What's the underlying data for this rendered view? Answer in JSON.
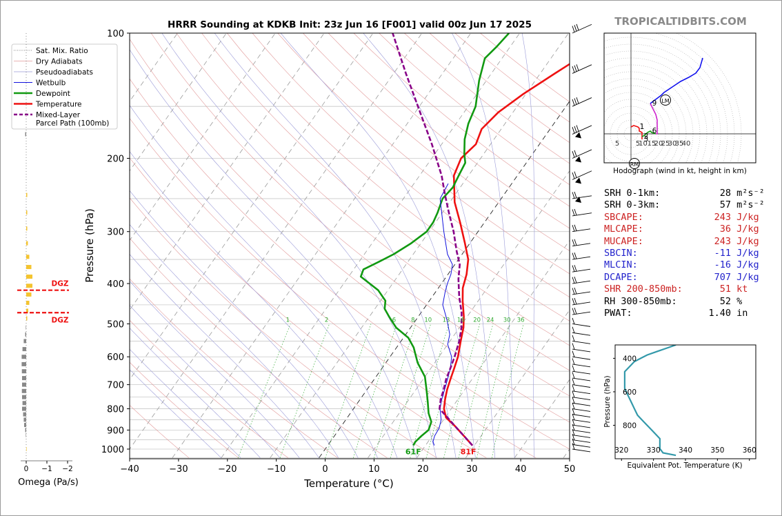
{
  "title": "HRRR Sounding at KDKB Init: 23z Jun 16 [F001] valid 00z Jun 17 2025",
  "watermark": "TROPICALTIDBITS.COM",
  "chart_data": [
    {
      "type": "line",
      "name": "skew-t",
      "xlabel": "Temperature (°C)",
      "ylabel": "Pressure (hPa)",
      "xlim": [
        -40,
        50
      ],
      "ylim": [
        1000,
        100
      ],
      "x_ticks": [
        "−40",
        "−30",
        "−20",
        "−10",
        "0",
        "10",
        "20",
        "30",
        "40",
        "50"
      ],
      "y_ticks": [
        "100",
        "200",
        "300",
        "400",
        "500",
        "600",
        "700",
        "800",
        "900",
        "1000"
      ],
      "legend": [
        "Sat. Mix. Ratio",
        "Dry Adiabats",
        "Pseudoadiabats",
        "Wetbulb",
        "Dewpoint",
        "Temperature",
        "Mixed-Layer\nParcel Path (100mb)"
      ],
      "mixing_ratio_labels": [
        "1",
        "2",
        "6",
        "8",
        "10",
        "13",
        "16",
        "20",
        "24",
        "30",
        "36"
      ],
      "surface_labels": {
        "dewpoint": "61F",
        "temperature": "81F"
      },
      "series": [
        {
          "name": "Temperature",
          "color": "#ee1111",
          "points": [
            [
              29.6,
              980
            ],
            [
              26.5,
              930
            ],
            [
              23.2,
              880
            ],
            [
              20.2,
              840
            ],
            [
              18.5,
              800
            ],
            [
              17.4,
              760
            ],
            [
              16.4,
              720
            ],
            [
              15.6,
              680
            ],
            [
              14.8,
              640
            ],
            [
              13.9,
              600
            ],
            [
              12.2,
              550
            ],
            [
              10.8,
              510
            ],
            [
              9.3,
              480
            ],
            [
              6.8,
              440
            ],
            [
              5,
              410
            ],
            [
              3.8,
              380
            ],
            [
              2,
              350
            ],
            [
              -1,
              320
            ],
            [
              -5,
              285
            ],
            [
              -9,
              255
            ],
            [
              -13,
              220
            ],
            [
              -14,
              200
            ],
            [
              -13,
              185
            ],
            [
              -14,
              170
            ],
            [
              -13,
              155
            ],
            [
              -10.5,
              140
            ],
            [
              -7,
              125
            ],
            [
              -3.5,
              112
            ],
            [
              0,
              100
            ]
          ]
        },
        {
          "name": "Dewpoint",
          "color": "#119911",
          "points": [
            [
              17.5,
              980
            ],
            [
              17.4,
              960
            ],
            [
              17.8,
              930
            ],
            [
              18.4,
              900
            ],
            [
              17.8,
              860
            ],
            [
              16,
              820
            ],
            [
              14.2,
              770
            ],
            [
              12.2,
              720
            ],
            [
              10,
              670
            ],
            [
              6.5,
              620
            ],
            [
              3.5,
              570
            ],
            [
              1,
              540
            ],
            [
              -3,
              510
            ],
            [
              -6,
              480
            ],
            [
              -8,
              460
            ],
            [
              -9,
              440
            ],
            [
              -12,
              415
            ],
            [
              -17.5,
              385
            ],
            [
              -18,
              370
            ],
            [
              -16,
              355
            ],
            [
              -14,
              340
            ],
            [
              -12,
              320
            ],
            [
              -10.5,
              300
            ],
            [
              -10.5,
              285
            ],
            [
              -11,
              270
            ],
            [
              -12,
              250
            ],
            [
              -11.5,
              235
            ],
            [
              -12,
              220
            ],
            [
              -12.5,
              205
            ],
            [
              -14,
              195
            ],
            [
              -16,
              180
            ],
            [
              -17.5,
              165
            ],
            [
              -18.5,
              150
            ],
            [
              -21.5,
              130
            ],
            [
              -23.5,
              115
            ],
            [
              -22.8,
              108
            ],
            [
              -22.2,
              100
            ]
          ]
        },
        {
          "name": "Wetbulb",
          "color": "#1111dd",
          "points": [
            [
              21.8,
              980
            ],
            [
              21,
              960
            ],
            [
              20.5,
              930
            ],
            [
              20.3,
              890
            ],
            [
              19.5,
              850
            ],
            [
              17.7,
              800
            ],
            [
              16.7,
              760
            ],
            [
              15.9,
              720
            ],
            [
              15,
              680
            ],
            [
              14,
              640
            ],
            [
              12.6,
              600
            ],
            [
              10,
              560
            ],
            [
              9,
              530
            ],
            [
              6.4,
              490
            ],
            [
              3.3,
              450
            ],
            [
              2,
              420
            ],
            [
              1.2,
              400
            ],
            [
              0.6,
              380
            ],
            [
              -0.5,
              360
            ],
            [
              -3,
              340
            ],
            [
              -7,
              300
            ],
            [
              -12.5,
              250
            ],
            [
              -13,
              230
            ]
          ]
        },
        {
          "name": "Mixed-Layer Parcel Path (100mb)",
          "color": "#880088",
          "dash": true,
          "points": [
            [
              29.6,
              980
            ],
            [
              26.5,
              930
            ],
            [
              23.2,
              880
            ],
            [
              20.5,
              840
            ],
            [
              17.6,
              800
            ],
            [
              16.5,
              760
            ],
            [
              15.7,
              720
            ],
            [
              14.7,
              680
            ],
            [
              14,
              640
            ],
            [
              13.2,
              600
            ],
            [
              11.9,
              550
            ],
            [
              10.4,
              510
            ],
            [
              8.3,
              470
            ],
            [
              5.5,
              430
            ],
            [
              2.8,
              390
            ],
            [
              1,
              360
            ],
            [
              -1.5,
              335
            ],
            [
              -5,
              300
            ],
            [
              -8.7,
              270
            ],
            [
              -12,
              245
            ],
            [
              -15.5,
              220
            ],
            [
              -22,
              185
            ],
            [
              -29,
              155
            ],
            [
              -37.5,
              125
            ],
            [
              -46,
              100
            ]
          ]
        }
      ]
    },
    {
      "type": "bar",
      "name": "omega",
      "xlabel": "Omega (Pa/s)",
      "x_ticks": [
        "0",
        "−1",
        "−2"
      ],
      "dgz_label": "DGZ",
      "bars": [
        [
          100,
          0
        ],
        [
          130,
          0
        ],
        [
          145,
          0
        ],
        [
          160,
          0
        ],
        [
          175,
          0.05
        ],
        [
          190,
          0
        ],
        [
          205,
          0
        ],
        [
          245,
          -0.05
        ],
        [
          270,
          -0.05
        ],
        [
          295,
          -0.05
        ],
        [
          320,
          -0.08
        ],
        [
          345,
          -0.15
        ],
        [
          365,
          -0.25
        ],
        [
          385,
          -0.3
        ],
        [
          405,
          -0.3
        ],
        [
          425,
          -0.25
        ],
        [
          445,
          -0.15
        ],
        [
          465,
          -0.1
        ],
        [
          485,
          -0.05
        ],
        [
          510,
          0.02
        ],
        [
          530,
          0.05
        ],
        [
          550,
          0.12
        ],
        [
          575,
          0.18
        ],
        [
          600,
          0.22
        ],
        [
          625,
          0.22
        ],
        [
          650,
          0.21
        ],
        [
          675,
          0.2
        ],
        [
          700,
          0.2
        ],
        [
          725,
          0.21
        ],
        [
          750,
          0.2
        ],
        [
          775,
          0.18
        ],
        [
          800,
          0.2
        ],
        [
          825,
          0.15
        ],
        [
          850,
          0.12
        ],
        [
          875,
          0.1
        ],
        [
          900,
          0.05
        ],
        [
          925,
          0.02
        ],
        [
          950,
          0
        ],
        [
          975,
          0
        ],
        [
          1000,
          -0.02
        ]
      ],
      "dgz_levels": [
        415,
        470
      ]
    },
    {
      "type": "line",
      "name": "hodograph",
      "xlabel": "Hodograph (wind in kt, height in km)",
      "ring_labels": [
        "5",
        "5",
        "10",
        "15",
        "20",
        "25",
        "30",
        "35",
        "40"
      ],
      "height_labels": [
        "1",
        "2",
        "3",
        "6",
        "9"
      ],
      "storm_markers": [
        "LM",
        "RM"
      ],
      "segments": [
        {
          "color": "#ee1111",
          "points": [
            [
              0,
              5
            ],
            [
              2,
              6
            ],
            [
              5,
              5
            ],
            [
              6,
              4
            ],
            [
              6,
              2
            ],
            [
              8,
              1
            ],
            [
              8,
              -2
            ],
            [
              8,
              -4
            ]
          ]
        },
        {
          "color": "#119911",
          "points": [
            [
              8,
              -2
            ],
            [
              10,
              -1
            ],
            [
              12,
              1
            ],
            [
              14,
              2
            ],
            [
              15,
              1
            ],
            [
              18,
              0
            ]
          ]
        },
        {
          "color": "#cc22cc",
          "points": [
            [
              18,
              0
            ],
            [
              19,
              0
            ],
            [
              19,
              3
            ],
            [
              19,
              6
            ],
            [
              19,
              10
            ],
            [
              18,
              14
            ],
            [
              16,
              18
            ],
            [
              15,
              20
            ],
            [
              14,
              22
            ]
          ]
        },
        {
          "color": "#1111ee",
          "points": [
            [
              14,
              22
            ],
            [
              18,
              25
            ],
            [
              22,
              28
            ],
            [
              24,
              30
            ],
            [
              30,
              34
            ],
            [
              36,
              38
            ],
            [
              42,
              41
            ],
            [
              47,
              44
            ],
            [
              50,
              48
            ],
            [
              52,
              55
            ]
          ]
        }
      ],
      "height_points": [
        [
          5,
          5
        ],
        [
          8,
          -2
        ],
        [
          8,
          -4
        ],
        [
          14,
          2
        ],
        [
          14,
          22
        ]
      ]
    },
    {
      "type": "line",
      "name": "theta-e",
      "xlabel": "Equivalent Pot. Temperature (K)",
      "ylabel": "Pressure (hPa)",
      "xlim": [
        318,
        362
      ],
      "ylim": [
        1000,
        320
      ],
      "x_ticks": [
        "320",
        "330",
        "340",
        "350",
        "360"
      ],
      "y_ticks": [
        "400",
        "600",
        "800"
      ],
      "series": [
        {
          "name": "theta-e",
          "color": "#3399aa",
          "values": [
            [
              337,
              320
            ],
            [
              334,
              340
            ],
            [
              331,
              360
            ],
            [
              328,
              380
            ],
            [
              326,
              400
            ],
            [
              324,
              420
            ],
            [
              323,
              440
            ],
            [
              322,
              460
            ],
            [
              321,
              480
            ],
            [
              321,
              500
            ],
            [
              321,
              540
            ],
            [
              321,
              580
            ],
            [
              322,
              620
            ],
            [
              323,
              660
            ],
            [
              324,
              700
            ],
            [
              325,
              740
            ],
            [
              327,
              780
            ],
            [
              329,
              820
            ],
            [
              331,
              860
            ],
            [
              332,
              880
            ],
            [
              332,
              900
            ],
            [
              332,
              940
            ],
            [
              333,
              965
            ],
            [
              337,
              980
            ]
          ]
        }
      ]
    }
  ],
  "stats": [
    {
      "label": "SRH 0-1km:",
      "value": "28",
      "unit": "m²s⁻²",
      "color": "#000000"
    },
    {
      "label": "SRH 0-3km:",
      "value": "57",
      "unit": "m²s⁻²",
      "color": "#000000"
    },
    {
      "label": "SBCAPE:",
      "value": "243",
      "unit": "J/kg",
      "color": "#cc2222"
    },
    {
      "label": "MLCAPE:",
      "value": "36",
      "unit": "J/kg",
      "color": "#cc2222"
    },
    {
      "label": "MUCAPE:",
      "value": "243",
      "unit": "J/kg",
      "color": "#cc2222"
    },
    {
      "label": "SBCIN:",
      "value": "-11",
      "unit": "J/kg",
      "color": "#2222cc"
    },
    {
      "label": "MLCIN:",
      "value": "-16",
      "unit": "J/kg",
      "color": "#2222cc"
    },
    {
      "label": "DCAPE:",
      "value": "707",
      "unit": "J/kg",
      "color": "#2222cc"
    },
    {
      "label": "SHR 200-850mb:",
      "value": "51",
      "unit": "kt",
      "color": "#cc2222"
    },
    {
      "label": "RH 300-850mb:",
      "value": "52",
      "unit": "%",
      "color": "#000000"
    },
    {
      "label": "PWAT:",
      "value": "1.40",
      "unit": "in",
      "color": "#000000"
    }
  ]
}
